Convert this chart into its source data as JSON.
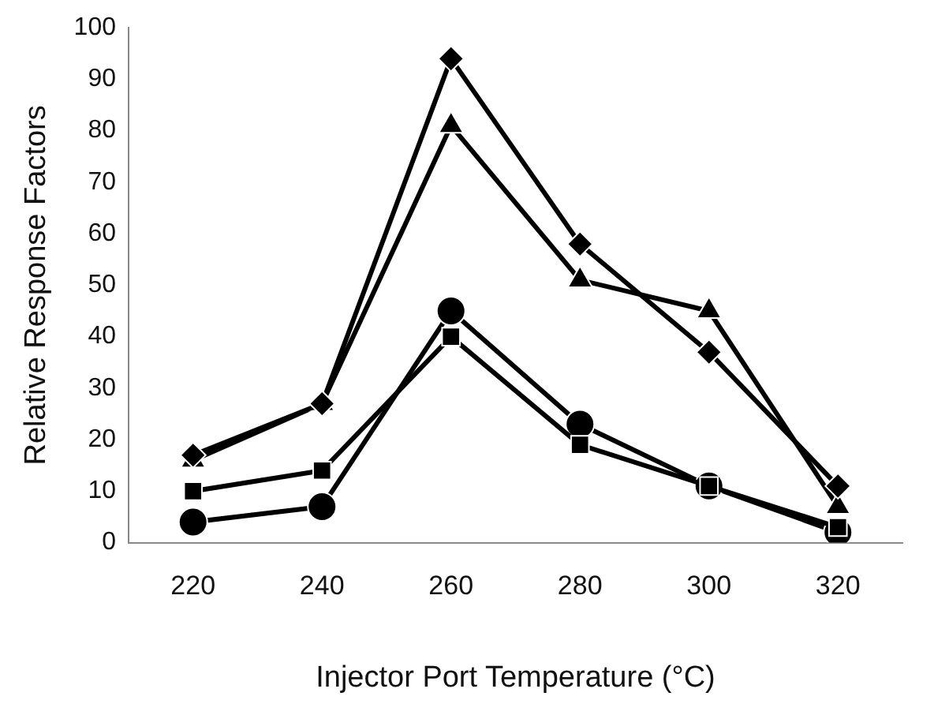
{
  "chart_data": {
    "type": "line",
    "xlabel": "Injector Port Temperature (°C)",
    "ylabel": "Relative Response Factors",
    "categories": [
      "220",
      "240",
      "260",
      "280",
      "300",
      "320"
    ],
    "ylim": [
      0,
      100
    ],
    "yticks": [
      0,
      10,
      20,
      30,
      40,
      50,
      60,
      70,
      80,
      90,
      100
    ],
    "grid": false,
    "legend": false,
    "line_style": "solid",
    "series": [
      {
        "color": "#000000",
        "marker": "diamond",
        "values": [
          17,
          27,
          94,
          58,
          37,
          11
        ]
      },
      {
        "color": "#000000",
        "marker": "triangle",
        "values": [
          16,
          27,
          81,
          51,
          45,
          7
        ]
      },
      {
        "color": "#000000",
        "marker": "square",
        "values": [
          10,
          14,
          40,
          19,
          11,
          3
        ]
      },
      {
        "color": "#000000",
        "marker": "circle",
        "values": [
          4,
          7,
          45,
          23,
          11,
          2
        ]
      }
    ]
  }
}
